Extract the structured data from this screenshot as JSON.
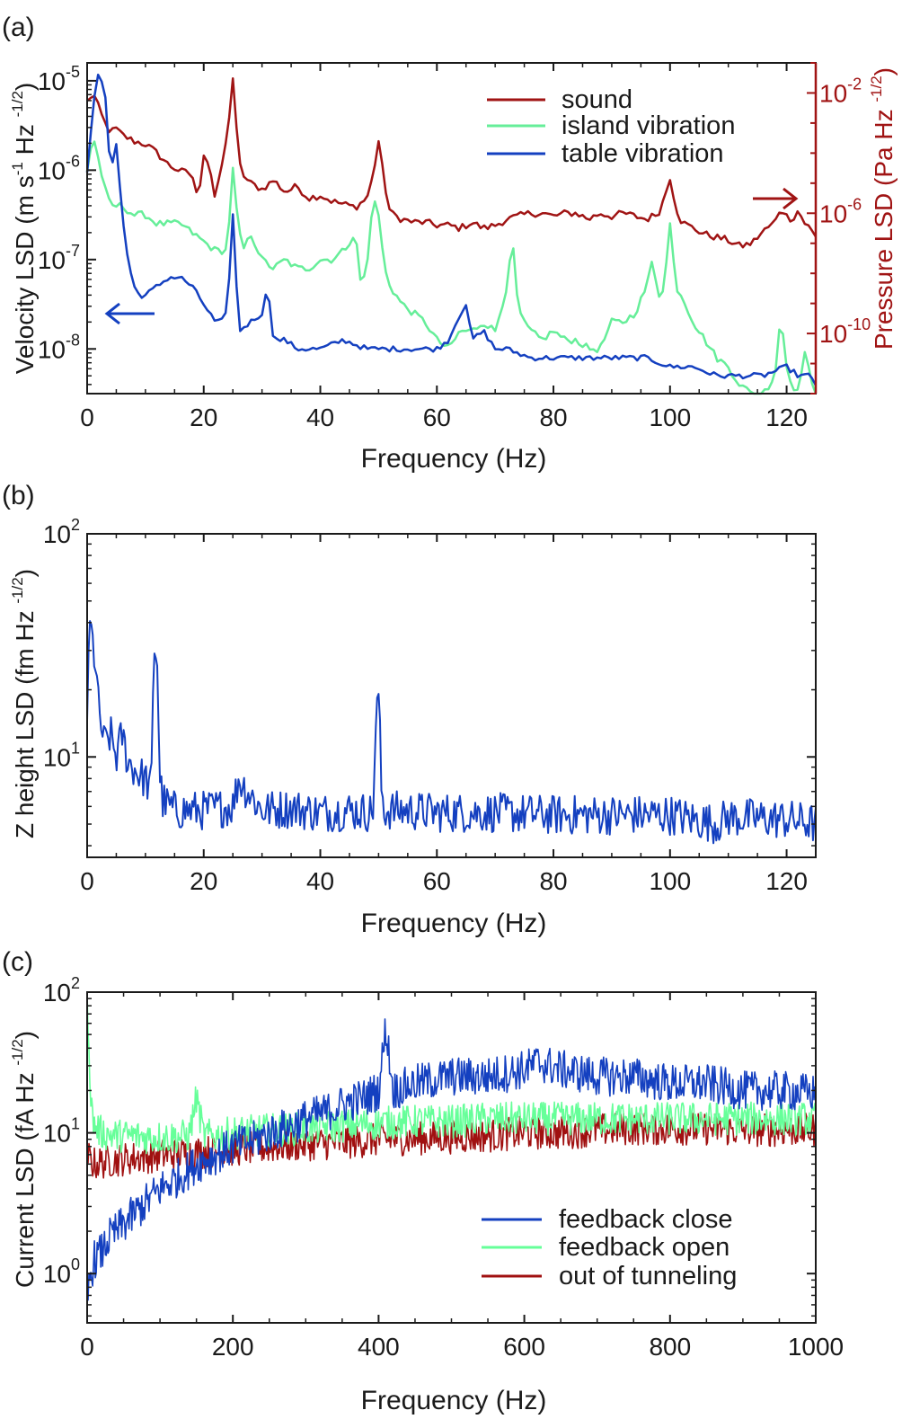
{
  "colors": {
    "axis": "#1a1a1a",
    "sound": "#a01414",
    "island": "#66ee99",
    "table": "#1440c0",
    "z": "#1440c0",
    "fb_close": "#1440c0",
    "fb_open": "#66ff99",
    "out_tunnel": "#a01010"
  },
  "chart_data": [
    {
      "type": "line",
      "panel_label": "(a)",
      "xlabel": "Frequency (Hz)",
      "ylabel": "Velocity LSD (m s-1 Hz -1/2)",
      "ylabel_parts": {
        "a": "Velocity LSD (m s",
        "b": "-1",
        "c": " Hz ",
        "d": "-1/2",
        "e": ")"
      },
      "y2label": "Pressure LSD (Pa Hz -1/2)",
      "y2label_parts": {
        "a": "Pressure LSD (Pa Hz ",
        "b": "-1/2",
        "c": ")"
      },
      "xlim": [
        0,
        125
      ],
      "ylim_log": [
        -8.5,
        -4.8
      ],
      "y2lim_log": [
        -12,
        -1
      ],
      "xticks": [
        "0",
        "20",
        "40",
        "60",
        "80",
        "100",
        "120"
      ],
      "yticks": [
        {
          "base": "10",
          "exp": "-8"
        },
        {
          "base": "10",
          "exp": "-7"
        },
        {
          "base": "10",
          "exp": "-6"
        },
        {
          "base": "10",
          "exp": "-5"
        }
      ],
      "y2ticks": [
        {
          "base": "10",
          "exp": "-10"
        },
        {
          "base": "10",
          "exp": "-6"
        },
        {
          "base": "10",
          "exp": "-2"
        }
      ],
      "legend": [
        "sound",
        "island vibration",
        "table vibration"
      ],
      "legend_position": "top-right",
      "annotations": [
        "arrow-left to velocity axis",
        "arrow-right to pressure axis"
      ],
      "series": [
        {
          "name": "sound",
          "axis": "right",
          "x": [
            0,
            1,
            2,
            3,
            4,
            5,
            6,
            8,
            10,
            12,
            14,
            16,
            18,
            19,
            20,
            21,
            22,
            23,
            24,
            25,
            26,
            27,
            28,
            30,
            32,
            34,
            36,
            38,
            40,
            42,
            44,
            46,
            48,
            49,
            50,
            51,
            52,
            54,
            56,
            58,
            60,
            62,
            64,
            66,
            68,
            70,
            72,
            74,
            76,
            78,
            80,
            82,
            84,
            86,
            88,
            90,
            92,
            94,
            96,
            98,
            99,
            100,
            101,
            102,
            104,
            106,
            108,
            110,
            112,
            114,
            116,
            118,
            119,
            120,
            121,
            122,
            123,
            124,
            125
          ],
          "values": [
            -2.3,
            -2.0,
            -2.5,
            -3.0,
            -3.3,
            -3.2,
            -3.4,
            -3.6,
            -3.7,
            -4.0,
            -4.4,
            -4.6,
            -4.7,
            -5.6,
            -4.0,
            -4.4,
            -5.6,
            -4.5,
            -3.5,
            -1.5,
            -4.3,
            -4.8,
            -5.0,
            -5.2,
            -4.9,
            -5.3,
            -5.1,
            -5.5,
            -5.4,
            -5.6,
            -5.7,
            -5.8,
            -5.5,
            -4.8,
            -3.6,
            -5.0,
            -6.0,
            -6.2,
            -6.3,
            -6.3,
            -6.4,
            -6.4,
            -6.5,
            -6.3,
            -6.5,
            -6.4,
            -6.2,
            -6.1,
            -6.0,
            -6.0,
            -6.1,
            -6.0,
            -6.0,
            -6.2,
            -6.0,
            -6.1,
            -6.0,
            -6.1,
            -6.2,
            -6.0,
            -5.5,
            -4.8,
            -5.8,
            -6.3,
            -6.5,
            -6.7,
            -6.8,
            -6.9,
            -7.1,
            -7.0,
            -6.6,
            -6.3,
            -5.8,
            -6.1,
            -6.2,
            -5.9,
            -6.3,
            -6.5,
            -6.8
          ]
        },
        {
          "name": "island vibration",
          "axis": "left",
          "x": [
            0,
            1,
            2,
            3,
            4,
            5,
            6,
            8,
            10,
            12,
            14,
            16,
            18,
            20,
            22,
            24,
            25,
            26,
            27,
            28,
            30,
            32,
            34,
            36,
            38,
            40,
            42,
            44,
            46,
            47,
            48,
            49,
            50,
            51,
            52,
            54,
            56,
            58,
            60,
            62,
            64,
            66,
            68,
            70,
            72,
            73,
            74,
            76,
            78,
            80,
            82,
            84,
            86,
            88,
            90,
            92,
            94,
            96,
            97,
            98,
            99,
            100,
            101,
            102,
            104,
            106,
            108,
            110,
            112,
            114,
            116,
            118,
            119,
            120,
            121,
            122,
            123,
            124,
            125
          ],
          "values": [
            -6.0,
            -5.6,
            -5.9,
            -6.2,
            -6.4,
            -6.4,
            -6.4,
            -6.5,
            -6.5,
            -6.6,
            -6.6,
            -6.6,
            -6.7,
            -6.8,
            -6.9,
            -6.9,
            -6.0,
            -6.7,
            -6.9,
            -6.7,
            -7.0,
            -7.1,
            -7.0,
            -7.1,
            -7.1,
            -7.0,
            -7.0,
            -6.9,
            -6.7,
            -7.3,
            -7.1,
            -6.3,
            -6.5,
            -7.1,
            -7.3,
            -7.5,
            -7.6,
            -7.7,
            -7.9,
            -8.0,
            -7.8,
            -7.8,
            -7.7,
            -7.8,
            -7.3,
            -6.8,
            -7.6,
            -7.8,
            -7.9,
            -7.8,
            -7.9,
            -7.9,
            -8.0,
            -8.0,
            -7.7,
            -7.7,
            -7.6,
            -7.3,
            -7.0,
            -7.4,
            -7.3,
            -6.6,
            -7.3,
            -7.4,
            -7.7,
            -7.9,
            -8.1,
            -8.2,
            -8.4,
            -8.5,
            -8.5,
            -8.3,
            -7.6,
            -8.2,
            -8.4,
            -8.5,
            -8.0,
            -8.3,
            -8.6
          ]
        },
        {
          "name": "table vibration",
          "axis": "left",
          "x": [
            0,
            1,
            2,
            3,
            4,
            5,
            6,
            7,
            8,
            9,
            10,
            12,
            14,
            16,
            18,
            20,
            22,
            23,
            24,
            25,
            26,
            28,
            30,
            31,
            32,
            34,
            36,
            40,
            44,
            48,
            50,
            52,
            56,
            60,
            62,
            64,
            65,
            66,
            68,
            70,
            72,
            76,
            80,
            84,
            88,
            92,
            96,
            100,
            104,
            108,
            112,
            116,
            120,
            122,
            124,
            125
          ],
          "values": [
            -6.0,
            -5.3,
            -4.9,
            -5.1,
            -6.0,
            -5.7,
            -6.5,
            -7.0,
            -7.3,
            -7.4,
            -7.4,
            -7.3,
            -7.2,
            -7.2,
            -7.3,
            -7.5,
            -7.7,
            -7.7,
            -7.6,
            -6.5,
            -7.8,
            -7.7,
            -7.6,
            -7.3,
            -7.9,
            -7.9,
            -8.0,
            -8.0,
            -7.9,
            -8.0,
            -8.0,
            -8.0,
            -8.0,
            -8.0,
            -7.9,
            -7.6,
            -7.5,
            -7.9,
            -7.8,
            -8.0,
            -8.0,
            -8.1,
            -8.1,
            -8.1,
            -8.1,
            -8.1,
            -8.1,
            -8.2,
            -8.2,
            -8.3,
            -8.3,
            -8.3,
            -8.2,
            -8.3,
            -8.3,
            -8.4
          ]
        }
      ]
    },
    {
      "type": "line",
      "panel_label": "(b)",
      "xlabel": "Frequency (Hz)",
      "ylabel": "Z height  LSD (fm Hz -1/2)",
      "ylabel_parts": {
        "a": "Z height  LSD (fm Hz ",
        "b": "-1/2",
        "c": ")"
      },
      "xlim": [
        0,
        125
      ],
      "ylim_log": [
        0.55,
        2.0
      ],
      "xticks": [
        "0",
        "20",
        "40",
        "60",
        "80",
        "100",
        "120"
      ],
      "yticks": [
        {
          "base": "10",
          "exp": "1"
        },
        {
          "base": "10",
          "exp": "2"
        }
      ],
      "series": [
        {
          "name": "z height",
          "x": [
            0,
            0.5,
            1,
            1.5,
            2,
            3,
            4,
            5,
            6,
            7,
            8,
            9,
            10,
            11,
            11.5,
            12,
            12.5,
            13,
            14,
            15,
            20,
            25,
            26,
            30,
            35,
            40,
            45,
            49,
            49.5,
            50,
            50.5,
            51,
            55,
            60,
            70,
            80,
            90,
            100,
            108,
            110,
            120,
            125
          ],
          "values": [
            1.2,
            1.6,
            1.5,
            1.4,
            1.2,
            1.05,
            1.1,
            1.0,
            1.1,
            0.98,
            0.95,
            0.92,
            0.9,
            0.85,
            1.5,
            1.45,
            0.9,
            0.8,
            0.78,
            0.76,
            0.76,
            0.78,
            0.9,
            0.76,
            0.77,
            0.75,
            0.76,
            0.75,
            1.1,
            1.3,
            0.85,
            0.76,
            0.76,
            0.75,
            0.75,
            0.74,
            0.74,
            0.74,
            0.7,
            0.73,
            0.72,
            0.7
          ]
        }
      ]
    },
    {
      "type": "line",
      "panel_label": "(c)",
      "xlabel": "Frequency (Hz)",
      "ylabel": "Current LSD (fA Hz -1/2)",
      "ylabel_parts": {
        "a": "Current LSD (fA Hz ",
        "b": "-1/2",
        "c": ")"
      },
      "xlim": [
        0,
        1000
      ],
      "ylim_log": [
        -0.35,
        2.0
      ],
      "xticks": [
        "0",
        "200",
        "400",
        "600",
        "800",
        "1000"
      ],
      "yticks": [
        {
          "base": "10",
          "exp": "0"
        },
        {
          "base": "10",
          "exp": "1"
        },
        {
          "base": "10",
          "exp": "2"
        }
      ],
      "legend": [
        "feedback close",
        "feedback open",
        "out of tunneling"
      ],
      "legend_position": "bottom-right",
      "series": [
        {
          "name": "feedback close",
          "x": [
            0,
            5,
            10,
            20,
            30,
            50,
            80,
            100,
            130,
            150,
            180,
            200,
            230,
            250,
            280,
            300,
            330,
            350,
            380,
            400,
            410,
            420,
            450,
            500,
            550,
            600,
            620,
            650,
            700,
            750,
            800,
            850,
            900,
            950,
            1000
          ],
          "values": [
            -0.2,
            0.0,
            0.1,
            0.15,
            0.25,
            0.35,
            0.5,
            0.6,
            0.7,
            0.78,
            0.85,
            0.9,
            0.95,
            1.0,
            1.05,
            1.1,
            1.15,
            1.2,
            1.25,
            1.3,
            1.75,
            1.3,
            1.35,
            1.4,
            1.4,
            1.45,
            1.5,
            1.45,
            1.4,
            1.4,
            1.35,
            1.35,
            1.3,
            1.3,
            1.28
          ]
        },
        {
          "name": "feedback open",
          "x": [
            0,
            3,
            5,
            10,
            20,
            40,
            60,
            80,
            100,
            120,
            140,
            150,
            160,
            180,
            200,
            250,
            300,
            350,
            400,
            450,
            500,
            550,
            600,
            650,
            700,
            750,
            800,
            850,
            900,
            950,
            1000
          ],
          "values": [
            2.0,
            1.6,
            1.2,
            1.05,
            1.0,
            0.98,
            0.98,
            0.97,
            0.97,
            0.97,
            0.98,
            1.25,
            0.98,
            0.98,
            1.0,
            1.02,
            1.03,
            1.05,
            1.07,
            1.08,
            1.08,
            1.1,
            1.1,
            1.1,
            1.1,
            1.1,
            1.1,
            1.1,
            1.1,
            1.1,
            1.1
          ]
        },
        {
          "name": "out of tunneling",
          "x": [
            0,
            5,
            10,
            30,
            60,
            100,
            150,
            200,
            250,
            300,
            350,
            400,
            450,
            500,
            550,
            600,
            650,
            700,
            750,
            800,
            850,
            900,
            950,
            1000
          ],
          "values": [
            0.85,
            0.8,
            0.78,
            0.8,
            0.82,
            0.84,
            0.86,
            0.88,
            0.9,
            0.92,
            0.93,
            0.95,
            0.96,
            0.97,
            0.98,
            1.0,
            1.0,
            1.02,
            1.03,
            1.03,
            1.03,
            1.02,
            1.02,
            1.02
          ]
        }
      ]
    }
  ]
}
